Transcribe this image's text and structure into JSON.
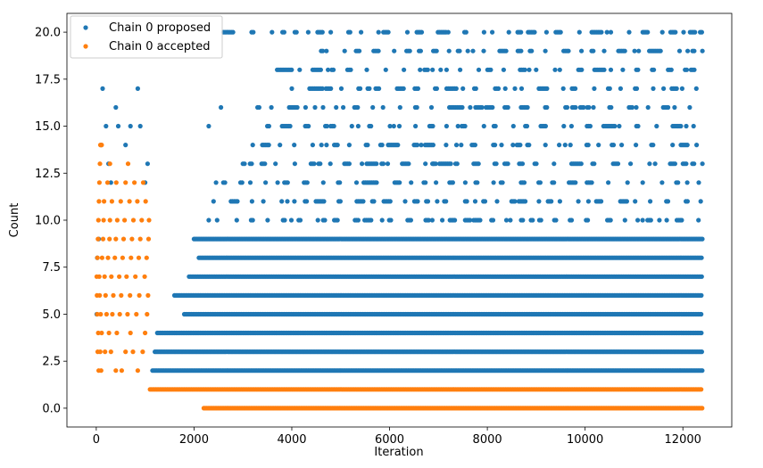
{
  "chart_data": {
    "type": "scatter",
    "title": "",
    "xlabel": "Iteration",
    "ylabel": "Count",
    "xlim": [
      -600,
      13000
    ],
    "ylim": [
      -1,
      21
    ],
    "x_ticks": [
      0,
      2000,
      4000,
      6000,
      8000,
      10000,
      12000
    ],
    "x_tick_labels": [
      "0",
      "2000",
      "4000",
      "6000",
      "8000",
      "10000",
      "12000"
    ],
    "y_ticks": [
      0,
      2.5,
      5,
      7.5,
      10,
      12.5,
      15,
      17.5,
      20
    ],
    "y_tick_labels": [
      "0.0",
      "2.5",
      "5.0",
      "7.5",
      "10.0",
      "12.5",
      "15.0",
      "17.5",
      "20.0"
    ],
    "grid": false,
    "legend_position": "top-left",
    "series": [
      {
        "name": "Chain 0 proposed",
        "color": "#1f77b4",
        "runs": [
          {
            "y": 2,
            "x_start": 1150,
            "x_end": 12400
          },
          {
            "y": 3,
            "x_start": 1200,
            "x_end": 12400
          },
          {
            "y": 4,
            "x_start": 1250,
            "x_end": 12400
          },
          {
            "y": 5,
            "x_start": 1800,
            "x_end": 12400
          },
          {
            "y": 6,
            "x_start": 1600,
            "x_end": 12400
          },
          {
            "y": 7,
            "x_start": 1900,
            "x_end": 12400
          },
          {
            "y": 8,
            "x_start": 2100,
            "x_end": 12400
          },
          {
            "y": 9,
            "x_start": 2000,
            "x_end": 12400
          },
          {
            "y": 10,
            "x_start": 2300,
            "x_end": 12400
          },
          {
            "y": 11,
            "x_start": 2400,
            "x_end": 12400
          },
          {
            "y": 12,
            "x_start": 2600,
            "x_end": 12400
          },
          {
            "y": 13,
            "x_start": 3000,
            "x_end": 12400
          },
          {
            "y": 14,
            "x_start": 3200,
            "x_end": 12400
          },
          {
            "y": 15,
            "x_start": 3500,
            "x_end": 12400
          },
          {
            "y": 16,
            "x_start": 3300,
            "x_end": 12400
          },
          {
            "y": 17,
            "x_start": 4000,
            "x_end": 12400
          },
          {
            "y": 18,
            "x_start": 3700,
            "x_end": 12400
          },
          {
            "y": 19,
            "x_start": 4600,
            "x_end": 12400
          },
          {
            "y": 20,
            "x_start": 2600,
            "x_end": 12400
          }
        ],
        "extra_points": [
          {
            "x": 10,
            "y": 5
          },
          {
            "x": 20,
            "y": 8
          },
          {
            "x": 50,
            "y": 9
          },
          {
            "x": 100,
            "y": 14
          },
          {
            "x": 130,
            "y": 17
          },
          {
            "x": 200,
            "y": 15
          },
          {
            "x": 250,
            "y": 13
          },
          {
            "x": 300,
            "y": 12
          },
          {
            "x": 400,
            "y": 16
          },
          {
            "x": 450,
            "y": 15
          },
          {
            "x": 600,
            "y": 14
          },
          {
            "x": 700,
            "y": 15
          },
          {
            "x": 850,
            "y": 17
          },
          {
            "x": 900,
            "y": 15
          },
          {
            "x": 1000,
            "y": 12
          },
          {
            "x": 1050,
            "y": 13
          },
          {
            "x": 2300,
            "y": 15
          },
          {
            "x": 2450,
            "y": 12
          },
          {
            "x": 2550,
            "y": 16
          },
          {
            "x": 6800,
            "y": 10
          },
          {
            "x": 6900,
            "y": 13
          },
          {
            "x": 7200,
            "y": 20
          },
          {
            "x": 7400,
            "y": 15
          },
          {
            "x": 7500,
            "y": 17
          },
          {
            "x": 7600,
            "y": 19
          }
        ]
      },
      {
        "name": "Chain 0 accepted",
        "color": "#ff7f0e",
        "runs": [
          {
            "y": 1,
            "x_start": 1100,
            "x_end": 12400
          },
          {
            "y": 0,
            "x_start": 2200,
            "x_end": 12400
          }
        ],
        "extra_points": [
          {
            "x": 50,
            "y": 2
          },
          {
            "x": 100,
            "y": 2
          },
          {
            "x": 400,
            "y": 2
          },
          {
            "x": 520,
            "y": 2
          },
          {
            "x": 850,
            "y": 2
          },
          {
            "x": 30,
            "y": 3
          },
          {
            "x": 80,
            "y": 3
          },
          {
            "x": 180,
            "y": 3
          },
          {
            "x": 300,
            "y": 3
          },
          {
            "x": 600,
            "y": 3
          },
          {
            "x": 750,
            "y": 3
          },
          {
            "x": 950,
            "y": 3
          },
          {
            "x": 40,
            "y": 4
          },
          {
            "x": 110,
            "y": 4
          },
          {
            "x": 260,
            "y": 4
          },
          {
            "x": 420,
            "y": 4
          },
          {
            "x": 700,
            "y": 4
          },
          {
            "x": 1000,
            "y": 4
          },
          {
            "x": 20,
            "y": 5
          },
          {
            "x": 90,
            "y": 5
          },
          {
            "x": 210,
            "y": 5
          },
          {
            "x": 330,
            "y": 5
          },
          {
            "x": 480,
            "y": 5
          },
          {
            "x": 640,
            "y": 5
          },
          {
            "x": 820,
            "y": 5
          },
          {
            "x": 1040,
            "y": 5
          },
          {
            "x": 15,
            "y": 6
          },
          {
            "x": 70,
            "y": 6
          },
          {
            "x": 190,
            "y": 6
          },
          {
            "x": 350,
            "y": 6
          },
          {
            "x": 510,
            "y": 6
          },
          {
            "x": 690,
            "y": 6
          },
          {
            "x": 880,
            "y": 6
          },
          {
            "x": 1060,
            "y": 6
          },
          {
            "x": 10,
            "y": 7
          },
          {
            "x": 60,
            "y": 7
          },
          {
            "x": 170,
            "y": 7
          },
          {
            "x": 310,
            "y": 7
          },
          {
            "x": 470,
            "y": 7
          },
          {
            "x": 620,
            "y": 7
          },
          {
            "x": 800,
            "y": 7
          },
          {
            "x": 990,
            "y": 7
          },
          {
            "x": 25,
            "y": 8
          },
          {
            "x": 120,
            "y": 8
          },
          {
            "x": 240,
            "y": 8
          },
          {
            "x": 380,
            "y": 8
          },
          {
            "x": 540,
            "y": 8
          },
          {
            "x": 710,
            "y": 8
          },
          {
            "x": 870,
            "y": 8
          },
          {
            "x": 1030,
            "y": 8
          },
          {
            "x": 35,
            "y": 9
          },
          {
            "x": 140,
            "y": 9
          },
          {
            "x": 270,
            "y": 9
          },
          {
            "x": 400,
            "y": 9
          },
          {
            "x": 560,
            "y": 9
          },
          {
            "x": 730,
            "y": 9
          },
          {
            "x": 900,
            "y": 9
          },
          {
            "x": 1070,
            "y": 9
          },
          {
            "x": 45,
            "y": 10
          },
          {
            "x": 150,
            "y": 10
          },
          {
            "x": 280,
            "y": 10
          },
          {
            "x": 430,
            "y": 10
          },
          {
            "x": 580,
            "y": 10
          },
          {
            "x": 760,
            "y": 10
          },
          {
            "x": 930,
            "y": 10
          },
          {
            "x": 1080,
            "y": 10
          },
          {
            "x": 55,
            "y": 11
          },
          {
            "x": 160,
            "y": 11
          },
          {
            "x": 320,
            "y": 11
          },
          {
            "x": 500,
            "y": 11
          },
          {
            "x": 680,
            "y": 11
          },
          {
            "x": 840,
            "y": 11
          },
          {
            "x": 1010,
            "y": 11
          },
          {
            "x": 65,
            "y": 12
          },
          {
            "x": 230,
            "y": 12
          },
          {
            "x": 410,
            "y": 12
          },
          {
            "x": 600,
            "y": 12
          },
          {
            "x": 780,
            "y": 12
          },
          {
            "x": 960,
            "y": 12
          },
          {
            "x": 75,
            "y": 13
          },
          {
            "x": 280,
            "y": 13
          },
          {
            "x": 650,
            "y": 13
          },
          {
            "x": 85,
            "y": 14
          },
          {
            "x": 110,
            "y": 14
          }
        ]
      }
    ]
  }
}
